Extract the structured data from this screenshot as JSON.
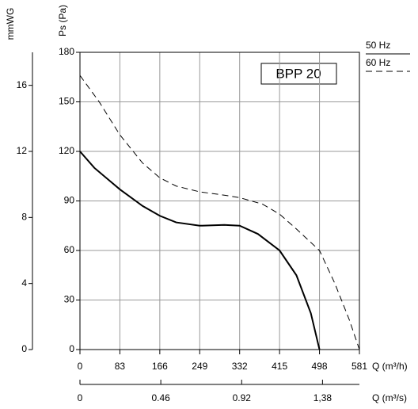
{
  "chart_data": {
    "type": "line",
    "label": "BPP 20",
    "ylabel": "Ps (Pa)",
    "y2label": "mmWG",
    "xlabel": "Q (m³/h)",
    "x2label": "Q (m³/s)",
    "xlim": [
      0,
      581
    ],
    "xticks": [
      0,
      83,
      166,
      249,
      332,
      415,
      498,
      581
    ],
    "ylim": [
      0,
      180
    ],
    "yticks": [
      0,
      30,
      60,
      90,
      120,
      150,
      180
    ],
    "y2lim": [
      0,
      18
    ],
    "y2ticks": [
      0,
      4,
      8,
      12,
      16
    ],
    "x2lim": [
      0,
      1.59
    ],
    "x2ticks": [
      0,
      0.46,
      0.92,
      {
        "value": 1.38,
        "label": "1,38"
      }
    ],
    "grid": true,
    "series": [
      {
        "name": "50 Hz",
        "color": "#000000",
        "dash": false,
        "x": [
          0,
          30,
          83,
          130,
          166,
          200,
          249,
          300,
          332,
          370,
          415,
          450,
          480,
          498
        ],
        "values": [
          120,
          110,
          97,
          87,
          81,
          77,
          75,
          75.5,
          75,
          70,
          60,
          45,
          22,
          0
        ]
      },
      {
        "name": "60 Hz",
        "color": "#000000",
        "dash": true,
        "x": [
          0,
          40,
          83,
          130,
          166,
          200,
          249,
          300,
          332,
          380,
          415,
          450,
          498,
          530,
          560,
          581
        ],
        "values": [
          166,
          150,
          130,
          113,
          104,
          99,
          95.5,
          93.5,
          92,
          88,
          82,
          73,
          60,
          40,
          18,
          0
        ]
      }
    ]
  }
}
